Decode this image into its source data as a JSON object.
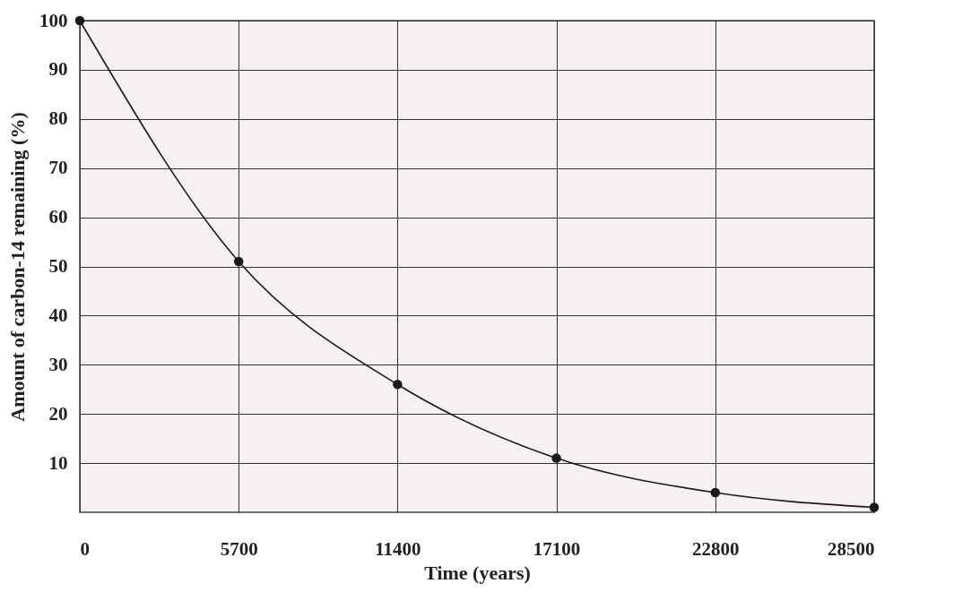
{
  "chart_data": {
    "type": "line",
    "xlabel": "Time (years)",
    "ylabel": "Amount of carbon-14 remaining (%)",
    "x": [
      0,
      5700,
      11400,
      17100,
      22800,
      28500
    ],
    "series": [
      {
        "color": "#1a1a1a",
        "values": [
          100,
          51,
          26,
          11,
          4,
          1
        ]
      }
    ],
    "xlim": [
      0,
      28500
    ],
    "xticks": [
      0,
      5700,
      11400,
      17100,
      22800,
      28500
    ],
    "ylim": [
      0,
      100
    ],
    "yticks": [
      10,
      20,
      30,
      40,
      50,
      60,
      70,
      80,
      90,
      100
    ],
    "grid": true,
    "marker": "circle",
    "line_style": "solid",
    "legend": false
  }
}
